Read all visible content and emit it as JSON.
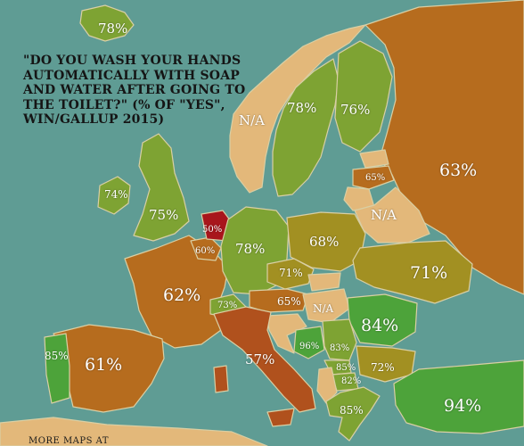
{
  "title": "\"DO YOU WASH YOUR HANDS AUTOMATICALLY WITH SOAP AND WATER AFTER GOING TO THE TOILET?\" (% OF \"YES\", WIN/GALLUP 2015)",
  "footer": "MORE MAPS AT",
  "colors": {
    "sea": "#5f9c94",
    "border": "#d9cfa4",
    "na": "#e3b87a",
    "scale_low": "#b0151b",
    "scale_mid": "#b86a1f",
    "scale_high": "#4da33a"
  },
  "values": [
    {
      "country": "Iceland",
      "label": "78%"
    },
    {
      "country": "Norway",
      "label": "N/A"
    },
    {
      "country": "Sweden",
      "label": "78%"
    },
    {
      "country": "Finland",
      "label": "76%"
    },
    {
      "country": "Russia",
      "label": "63%"
    },
    {
      "country": "Latvia",
      "label": "65%"
    },
    {
      "country": "Belarus",
      "label": "N/A"
    },
    {
      "country": "Ireland",
      "label": "74%"
    },
    {
      "country": "United Kingdom",
      "label": "75%"
    },
    {
      "country": "Netherlands",
      "label": "50%"
    },
    {
      "country": "Belgium",
      "label": "60%"
    },
    {
      "country": "Germany",
      "label": "78%"
    },
    {
      "country": "Poland",
      "label": "68%"
    },
    {
      "country": "Ukraine",
      "label": "71%"
    },
    {
      "country": "Czech Republic",
      "label": "71%"
    },
    {
      "country": "France",
      "label": "62%"
    },
    {
      "country": "Switzerland",
      "label": "73%"
    },
    {
      "country": "Austria",
      "label": "65%"
    },
    {
      "country": "Hungary",
      "label": "N/A"
    },
    {
      "country": "Romania",
      "label": "84%"
    },
    {
      "country": "Bosnia and Herzegovina",
      "label": "96%"
    },
    {
      "country": "Serbia",
      "label": "83%"
    },
    {
      "country": "Kosovo",
      "label": "85%"
    },
    {
      "country": "Macedonia",
      "label": "82%"
    },
    {
      "country": "Bulgaria",
      "label": "72%"
    },
    {
      "country": "Greece",
      "label": "85%"
    },
    {
      "country": "Turkey",
      "label": "94%"
    },
    {
      "country": "Italy",
      "label": "57%"
    },
    {
      "country": "Portugal",
      "label": "85%"
    },
    {
      "country": "Spain",
      "label": "61%"
    }
  ]
}
